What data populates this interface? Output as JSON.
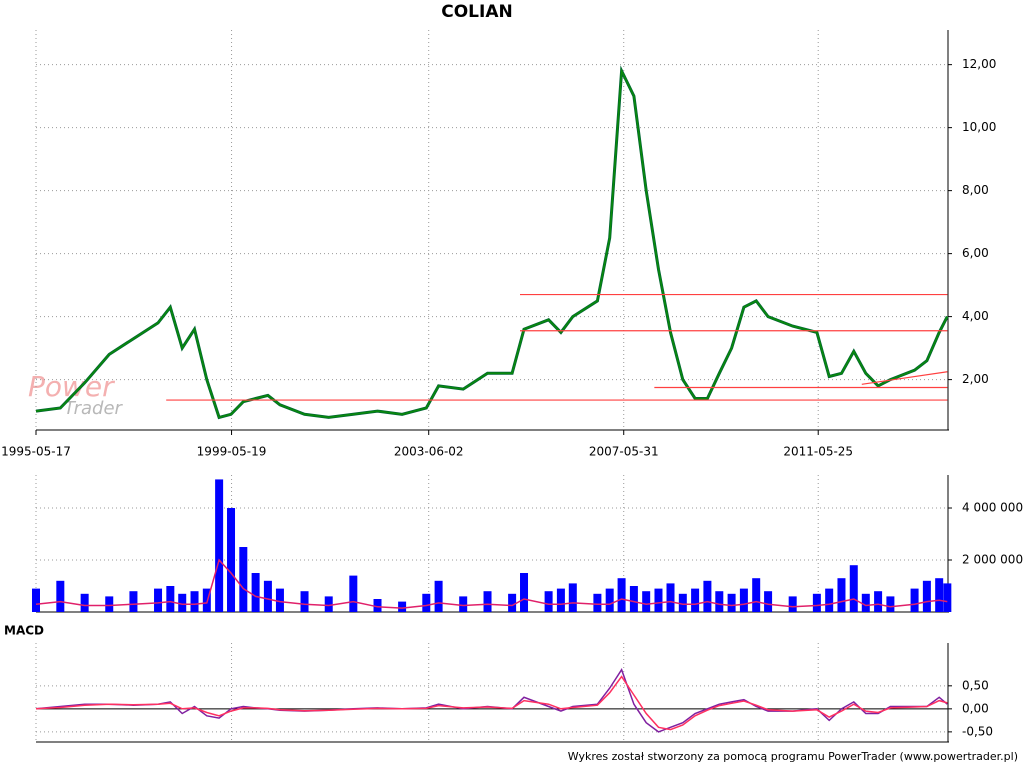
{
  "title": "COLIAN",
  "footer": "Wykres został stworzony za pomocą programu PowerTrader (www.powertrader.pl)",
  "watermark": {
    "line1": "Power",
    "line2": "Trader"
  },
  "chart_data": [
    {
      "type": "line",
      "x": [
        "1995-05-17",
        "1995-11-15",
        "1996-05-15",
        "1996-11-15",
        "1997-05-15",
        "1997-11-15",
        "1998-02-15",
        "1998-05-15",
        "1998-08-15",
        "1998-11-15",
        "1999-02-15",
        "1999-05-15",
        "1999-08-15",
        "1999-11-15",
        "2000-02-15",
        "2000-05-15",
        "2000-11-15",
        "2001-05-15",
        "2001-11-15",
        "2002-05-15",
        "2002-11-15",
        "2003-05-15",
        "2003-08-15",
        "2004-02-15",
        "2004-08-15",
        "2005-02-15",
        "2005-05-15",
        "2005-11-15",
        "2006-02-15",
        "2006-05-15",
        "2006-11-15",
        "2007-02-15",
        "2007-05-15",
        "2007-08-15",
        "2007-11-15",
        "2008-02-15",
        "2008-05-15",
        "2008-08-15",
        "2008-11-15",
        "2009-02-15",
        "2009-05-15",
        "2009-08-15",
        "2009-11-15",
        "2010-02-15",
        "2010-05-15",
        "2010-11-15",
        "2011-05-15",
        "2011-08-15",
        "2011-11-15",
        "2012-02-15",
        "2012-05-15",
        "2012-08-15",
        "2012-11-15",
        "2013-05-15",
        "2013-08-15",
        "2013-11-15",
        "2014-01-15"
      ],
      "series": [
        {
          "color": "#0a8a0a",
          "values": [
            1.0,
            1.1,
            1.9,
            2.8,
            3.3,
            3.8,
            4.3,
            3.0,
            3.6,
            2.0,
            0.8,
            0.9,
            1.3,
            1.4,
            1.5,
            1.2,
            0.9,
            0.8,
            0.9,
            1.0,
            0.9,
            1.1,
            1.8,
            1.7,
            2.2,
            2.2,
            3.6,
            3.9,
            3.5,
            4.0,
            4.5,
            6.5,
            11.8,
            11.0,
            8.0,
            5.5,
            3.5,
            2.0,
            1.4,
            1.4,
            2.2,
            3.0,
            4.3,
            4.5,
            4.0,
            3.7,
            3.5,
            2.1,
            2.2,
            2.9,
            2.2,
            1.8,
            2.0,
            2.3,
            2.6,
            3.5,
            4.0
          ]
        }
      ],
      "lines": {
        "color": "#ff4040",
        "items": [
          {
            "x": [
              "2005-04-15",
              "2014-01-15"
            ],
            "y": [
              4.7,
              4.7
            ]
          },
          {
            "x": [
              "2005-04-15",
              "2014-01-15"
            ],
            "y": [
              3.55,
              3.55
            ]
          },
          {
            "x": [
              "2008-01-15",
              "2014-01-15"
            ],
            "y": [
              1.75,
              1.75
            ]
          },
          {
            "x": [
              "1998-01-15",
              "2014-01-15"
            ],
            "y": [
              1.35,
              1.35
            ]
          },
          {
            "x": [
              "2012-04-15",
              "2014-01-15"
            ],
            "y": [
              1.85,
              2.25
            ]
          }
        ]
      },
      "xlim": [
        "1995-05-17",
        "2014-01-20"
      ],
      "xticks": [
        "1995-05-17",
        "1999-05-19",
        "2003-06-02",
        "2007-05-31",
        "2011-05-25"
      ],
      "ylim": [
        0.4,
        13.1
      ],
      "yticks": [
        {
          "value": 2,
          "label": "2,00"
        },
        {
          "value": 4,
          "label": "4,00"
        },
        {
          "value": 6,
          "label": "6,00"
        },
        {
          "value": 8,
          "label": "8,00"
        },
        {
          "value": 10,
          "label": "10,00"
        },
        {
          "value": 12,
          "label": "12,00"
        }
      ],
      "grid": true
    },
    {
      "type": "bar",
      "x": [
        "1995-05-17",
        "1995-11-15",
        "1996-05-15",
        "1996-11-15",
        "1997-05-15",
        "1997-11-15",
        "1998-02-15",
        "1998-05-15",
        "1998-08-15",
        "1998-11-15",
        "1999-02-15",
        "1999-05-15",
        "1999-08-15",
        "1999-11-15",
        "2000-02-15",
        "2000-05-15",
        "2000-11-15",
        "2001-05-15",
        "2001-11-15",
        "2002-05-15",
        "2002-11-15",
        "2003-05-15",
        "2003-08-15",
        "2004-02-15",
        "2004-08-15",
        "2005-02-15",
        "2005-05-15",
        "2005-11-15",
        "2006-02-15",
        "2006-05-15",
        "2006-11-15",
        "2007-02-15",
        "2007-05-15",
        "2007-08-15",
        "2007-11-15",
        "2008-02-15",
        "2008-05-15",
        "2008-08-15",
        "2008-11-15",
        "2009-02-15",
        "2009-05-15",
        "2009-08-15",
        "2009-11-15",
        "2010-02-15",
        "2010-05-15",
        "2010-11-15",
        "2011-05-15",
        "2011-08-15",
        "2011-11-15",
        "2012-02-15",
        "2012-05-15",
        "2012-08-15",
        "2012-11-15",
        "2013-05-15",
        "2013-08-15",
        "2013-11-15",
        "2014-01-15"
      ],
      "series": [
        {
          "type": "bar",
          "color": "#0000ff",
          "values": [
            900000,
            1200000,
            700000,
            600000,
            800000,
            900000,
            1000000,
            700000,
            800000,
            900000,
            5100000,
            4000000,
            2500000,
            1500000,
            1200000,
            900000,
            800000,
            600000,
            1400000,
            500000,
            400000,
            700000,
            1200000,
            600000,
            800000,
            700000,
            1500000,
            800000,
            900000,
            1100000,
            700000,
            900000,
            1300000,
            1000000,
            800000,
            900000,
            1100000,
            700000,
            900000,
            1200000,
            800000,
            700000,
            900000,
            1300000,
            800000,
            600000,
            700000,
            900000,
            1300000,
            1800000,
            700000,
            800000,
            600000,
            900000,
            1200000,
            1300000,
            1100000
          ]
        },
        {
          "type": "line",
          "color": "#e0206a",
          "values": [
            300000,
            400000,
            250000,
            250000,
            300000,
            350000,
            400000,
            300000,
            300000,
            350000,
            2000000,
            1500000,
            900000,
            600000,
            500000,
            400000,
            300000,
            250000,
            400000,
            200000,
            150000,
            250000,
            350000,
            250000,
            300000,
            250000,
            500000,
            300000,
            300000,
            350000,
            300000,
            300000,
            500000,
            400000,
            300000,
            350000,
            400000,
            300000,
            300000,
            400000,
            300000,
            250000,
            300000,
            400000,
            300000,
            200000,
            250000,
            300000,
            400000,
            500000,
            250000,
            300000,
            200000,
            300000,
            400000,
            450000,
            400000
          ]
        }
      ],
      "xlim": [
        "1995-05-17",
        "2014-01-20"
      ],
      "ylim": [
        0,
        5270000
      ],
      "yticks": [
        {
          "value": 2000000,
          "label": "2 000 000"
        },
        {
          "value": 4000000,
          "label": "4 000 000"
        }
      ],
      "grid": true
    },
    {
      "type": "line",
      "title": "MACD",
      "x": [
        "1995-05-17",
        "1995-11-15",
        "1996-05-15",
        "1996-11-15",
        "1997-05-15",
        "1997-11-15",
        "1998-02-15",
        "1998-05-15",
        "1998-08-15",
        "1998-11-15",
        "1999-02-15",
        "1999-05-15",
        "1999-08-15",
        "1999-11-15",
        "2000-02-15",
        "2000-05-15",
        "2000-11-15",
        "2001-05-15",
        "2001-11-15",
        "2002-05-15",
        "2002-11-15",
        "2003-05-15",
        "2003-08-15",
        "2004-02-15",
        "2004-08-15",
        "2005-02-15",
        "2005-05-15",
        "2005-11-15",
        "2006-02-15",
        "2006-05-15",
        "2006-11-15",
        "2007-02-15",
        "2007-05-15",
        "2007-08-15",
        "2007-11-15",
        "2008-02-15",
        "2008-05-15",
        "2008-08-15",
        "2008-11-15",
        "2009-02-15",
        "2009-05-15",
        "2009-08-15",
        "2009-11-15",
        "2010-02-15",
        "2010-05-15",
        "2010-11-15",
        "2011-05-15",
        "2011-08-15",
        "2011-11-15",
        "2012-02-15",
        "2012-05-15",
        "2012-08-15",
        "2012-11-15",
        "2013-05-15",
        "2013-08-15",
        "2013-11-15",
        "2014-01-15"
      ],
      "series": [
        {
          "color": "#8020a0",
          "values": [
            0,
            0.05,
            0.1,
            0.1,
            0.08,
            0.1,
            0.15,
            -0.1,
            0.05,
            -0.15,
            -0.2,
            0,
            0.05,
            0.02,
            0,
            -0.03,
            -0.05,
            -0.03,
            0,
            0.02,
            0,
            0.02,
            0.1,
            0,
            0.05,
            0,
            0.25,
            0.05,
            -0.05,
            0.05,
            0.1,
            0.45,
            0.85,
            0.1,
            -0.3,
            -0.5,
            -0.4,
            -0.3,
            -0.1,
            0,
            0.1,
            0.15,
            0.2,
            0.05,
            -0.05,
            -0.05,
            0,
            -0.25,
            0,
            0.15,
            -0.1,
            -0.1,
            0.05,
            0.05,
            0.05,
            0.25,
            0.1
          ]
        },
        {
          "color": "#ff3060",
          "values": [
            0,
            0.03,
            0.08,
            0.1,
            0.09,
            0.1,
            0.12,
            0,
            0.02,
            -0.08,
            -0.15,
            -0.05,
            0.02,
            0.02,
            0.01,
            -0.02,
            -0.04,
            -0.03,
            -0.01,
            0.01,
            0,
            0.01,
            0.07,
            0.02,
            0.04,
            0.01,
            0.18,
            0.1,
            0,
            0.03,
            0.08,
            0.35,
            0.7,
            0.3,
            -0.1,
            -0.4,
            -0.45,
            -0.35,
            -0.15,
            -0.03,
            0.07,
            0.12,
            0.17,
            0.08,
            -0.02,
            -0.05,
            -0.02,
            -0.18,
            -0.05,
            0.1,
            -0.05,
            -0.08,
            0.02,
            0.04,
            0.05,
            0.18,
            0.13
          ]
        }
      ],
      "xlim": [
        "1995-05-17",
        "2014-01-20"
      ],
      "ylim": [
        -0.72,
        1.43
      ],
      "yticks": [
        {
          "value": -0.5,
          "label": "-0,50"
        },
        {
          "value": 0,
          "label": "0,00"
        },
        {
          "value": 0.5,
          "label": "0,50"
        }
      ],
      "grid": true
    }
  ]
}
